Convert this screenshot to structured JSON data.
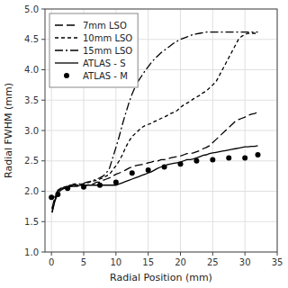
{
  "chart_data": {
    "type": "line",
    "xlabel": "Radial Position (mm)",
    "ylabel": "Radial FWHM (mm)",
    "xlim": [
      -1,
      35
    ],
    "ylim": [
      1,
      5
    ],
    "xticks": [
      0,
      5,
      10,
      15,
      20,
      25,
      30,
      35
    ],
    "yticks": [
      {
        "value": 1,
        "label": "1.0"
      },
      1.5,
      {
        "value": 2,
        "label": "2.0"
      },
      2.5,
      {
        "value": 3,
        "label": "3.0"
      },
      3.5,
      {
        "value": 4,
        "label": "4.0"
      },
      4.5,
      {
        "value": 5,
        "label": "5.0"
      }
    ],
    "grid": true,
    "legend": "upper left",
    "series": [
      {
        "name": "7mm LSO",
        "type": "line",
        "color": "#000000",
        "line_style": "long-dash",
        "x": [
          0.1,
          0.5,
          1.0,
          1.5,
          2.0,
          2.5,
          3.0,
          3.5,
          4.0,
          4.5,
          5.0,
          5.5,
          6.0,
          6.5,
          7.0,
          7.5,
          8.0,
          8.5,
          9.0,
          9.5,
          10.0,
          10.5,
          11.0,
          11.5,
          12.0,
          12.5,
          13.0,
          13.5,
          14.0,
          14.5,
          15.0,
          15.5,
          16.0,
          16.5,
          17.0,
          17.5,
          18.0,
          18.5,
          19.0,
          19.5,
          20.0,
          20.5,
          21.0,
          21.5,
          22.0,
          22.5,
          23.0,
          23.5,
          24.0,
          24.5,
          25.0,
          25.5,
          26.0,
          26.5,
          27.0,
          27.5,
          28.0,
          28.5,
          29.0,
          29.5,
          30.0,
          30.5,
          31.0,
          31.5,
          32.0
        ],
        "values": [
          1.65,
          1.85,
          2.0,
          2.05,
          2.05,
          2.05,
          2.08,
          2.1,
          2.1,
          2.1,
          2.1,
          2.1,
          2.12,
          2.12,
          2.15,
          2.15,
          2.18,
          2.2,
          2.22,
          2.25,
          2.28,
          2.3,
          2.32,
          2.35,
          2.38,
          2.4,
          2.42,
          2.43,
          2.44,
          2.45,
          2.47,
          2.48,
          2.5,
          2.5,
          2.52,
          2.52,
          2.53,
          2.55,
          2.56,
          2.57,
          2.58,
          2.6,
          2.62,
          2.62,
          2.63,
          2.65,
          2.67,
          2.7,
          2.72,
          2.75,
          2.8,
          2.85,
          2.9,
          2.95,
          3.0,
          3.05,
          3.1,
          3.15,
          3.18,
          3.2,
          3.22,
          3.25,
          3.27,
          3.28,
          3.3
        ]
      },
      {
        "name": "10mm LSO",
        "type": "line",
        "color": "#000000",
        "line_style": "dashed",
        "x": [
          0.1,
          0.5,
          1.0,
          1.5,
          2.0,
          2.5,
          3.0,
          3.5,
          4.0,
          4.5,
          5.0,
          5.5,
          6.0,
          6.5,
          7.0,
          7.5,
          8.0,
          8.5,
          9.0,
          9.5,
          10.0,
          10.5,
          11.0,
          11.5,
          12.0,
          12.5,
          13.0,
          13.5,
          14.0,
          14.5,
          15.0,
          15.5,
          16.0,
          16.5,
          17.0,
          17.5,
          18.0,
          18.5,
          19.0,
          19.5,
          20.0,
          20.5,
          21.0,
          21.5,
          22.0,
          22.5,
          23.0,
          23.5,
          24.0,
          24.5,
          25.0,
          25.5,
          26.0,
          26.5,
          27.0,
          27.5,
          28.0,
          28.5,
          29.0,
          29.5,
          30.0,
          30.5,
          31.0,
          31.5,
          32.0
        ],
        "values": [
          1.7,
          1.88,
          2.0,
          2.05,
          2.07,
          2.08,
          2.1,
          2.1,
          2.1,
          2.12,
          2.12,
          2.14,
          2.15,
          2.17,
          2.18,
          2.2,
          2.22,
          2.25,
          2.28,
          2.35,
          2.42,
          2.5,
          2.6,
          2.72,
          2.82,
          2.9,
          2.95,
          3.0,
          3.05,
          3.08,
          3.1,
          3.12,
          3.15,
          3.17,
          3.2,
          3.22,
          3.25,
          3.28,
          3.3,
          3.33,
          3.38,
          3.42,
          3.45,
          3.48,
          3.52,
          3.55,
          3.58,
          3.62,
          3.65,
          3.7,
          3.75,
          3.8,
          3.9,
          4.0,
          4.1,
          4.2,
          4.3,
          4.4,
          4.5,
          4.55,
          4.58,
          4.6,
          4.6,
          4.6,
          4.6
        ]
      },
      {
        "name": "15mm LSO",
        "type": "line",
        "color": "#000000",
        "line_style": "dash-dot",
        "x": [
          0.1,
          0.5,
          1.0,
          1.5,
          2.0,
          2.5,
          3.0,
          3.5,
          4.0,
          4.5,
          5.0,
          5.5,
          6.0,
          6.5,
          7.0,
          7.5,
          8.0,
          8.5,
          9.0,
          9.5,
          10.0,
          10.5,
          11.0,
          11.5,
          12.0,
          12.5,
          13.0,
          13.5,
          14.0,
          14.5,
          15.0,
          15.5,
          16.0,
          16.5,
          17.0,
          17.5,
          18.0,
          18.5,
          19.0,
          19.5,
          20.0,
          20.5,
          21.0,
          21.5,
          22.0,
          22.5,
          23.0,
          23.5,
          24.0,
          24.5,
          25.0,
          25.5,
          26.0,
          26.5,
          27.0,
          27.5,
          28.0,
          28.5,
          29.0,
          29.5,
          30.0,
          30.5,
          31.0,
          31.5,
          32.0
        ],
        "values": [
          1.72,
          1.9,
          2.02,
          2.05,
          2.07,
          2.08,
          2.1,
          2.12,
          2.12,
          2.12,
          2.13,
          2.15,
          2.16,
          2.18,
          2.2,
          2.22,
          2.25,
          2.3,
          2.38,
          2.55,
          2.72,
          2.9,
          3.1,
          3.28,
          3.45,
          3.6,
          3.72,
          3.82,
          3.9,
          3.98,
          4.05,
          4.12,
          4.18,
          4.23,
          4.28,
          4.32,
          4.36,
          4.4,
          4.44,
          4.47,
          4.5,
          4.52,
          4.54,
          4.56,
          4.58,
          4.59,
          4.6,
          4.61,
          4.62,
          4.62,
          4.62,
          4.62,
          4.62,
          4.62,
          4.62,
          4.62,
          4.62,
          4.62,
          4.62,
          4.62,
          4.62,
          4.62,
          4.62,
          4.62,
          4.62
        ]
      },
      {
        "name": "ATLAS - S",
        "type": "line",
        "color": "#000000",
        "line_style": "solid",
        "x": [
          0.1,
          0.5,
          1.0,
          1.5,
          2.0,
          2.5,
          3.0,
          3.5,
          4.0,
          4.5,
          5.0,
          5.5,
          6.0,
          6.5,
          7.0,
          7.5,
          8.0,
          8.5,
          9.0,
          9.5,
          10.0,
          10.5,
          11.0,
          11.5,
          12.0,
          12.5,
          13.0,
          13.5,
          14.0,
          14.5,
          15.0,
          15.5,
          16.0,
          16.5,
          17.0,
          17.5,
          18.0,
          18.5,
          19.0,
          19.5,
          20.0,
          20.5,
          21.0,
          21.5,
          22.0,
          22.5,
          23.0,
          23.5,
          24.0,
          24.5,
          25.0,
          25.5,
          26.0,
          26.5,
          27.0,
          27.5,
          28.0,
          28.5,
          29.0,
          29.5,
          30.0,
          30.5,
          31.0,
          31.5,
          32.0
        ],
        "values": [
          1.65,
          1.82,
          1.97,
          2.02,
          2.05,
          2.07,
          2.08,
          2.08,
          2.08,
          2.1,
          2.1,
          2.1,
          2.1,
          2.1,
          2.1,
          2.1,
          2.1,
          2.1,
          2.1,
          2.1,
          2.1,
          2.12,
          2.14,
          2.16,
          2.18,
          2.2,
          2.22,
          2.24,
          2.26,
          2.28,
          2.3,
          2.32,
          2.35,
          2.38,
          2.4,
          2.42,
          2.44,
          2.45,
          2.46,
          2.47,
          2.48,
          2.5,
          2.52,
          2.52,
          2.53,
          2.55,
          2.57,
          2.59,
          2.6,
          2.62,
          2.63,
          2.64,
          2.65,
          2.66,
          2.67,
          2.68,
          2.69,
          2.7,
          2.71,
          2.72,
          2.73,
          2.73,
          2.74,
          2.74,
          2.75
        ]
      },
      {
        "name": "ATLAS - M",
        "type": "scatter",
        "color": "#000000",
        "marker": "circle",
        "x": [
          0.0,
          1.0,
          2.5,
          5.0,
          7.5,
          10.0,
          12.5,
          15.0,
          17.5,
          20.0,
          22.5,
          25.0,
          27.5,
          30.0,
          32.0
        ],
        "values": [
          1.9,
          1.95,
          2.05,
          2.07,
          2.1,
          2.15,
          2.3,
          2.35,
          2.4,
          2.45,
          2.5,
          2.52,
          2.55,
          2.55,
          2.6
        ]
      }
    ]
  }
}
